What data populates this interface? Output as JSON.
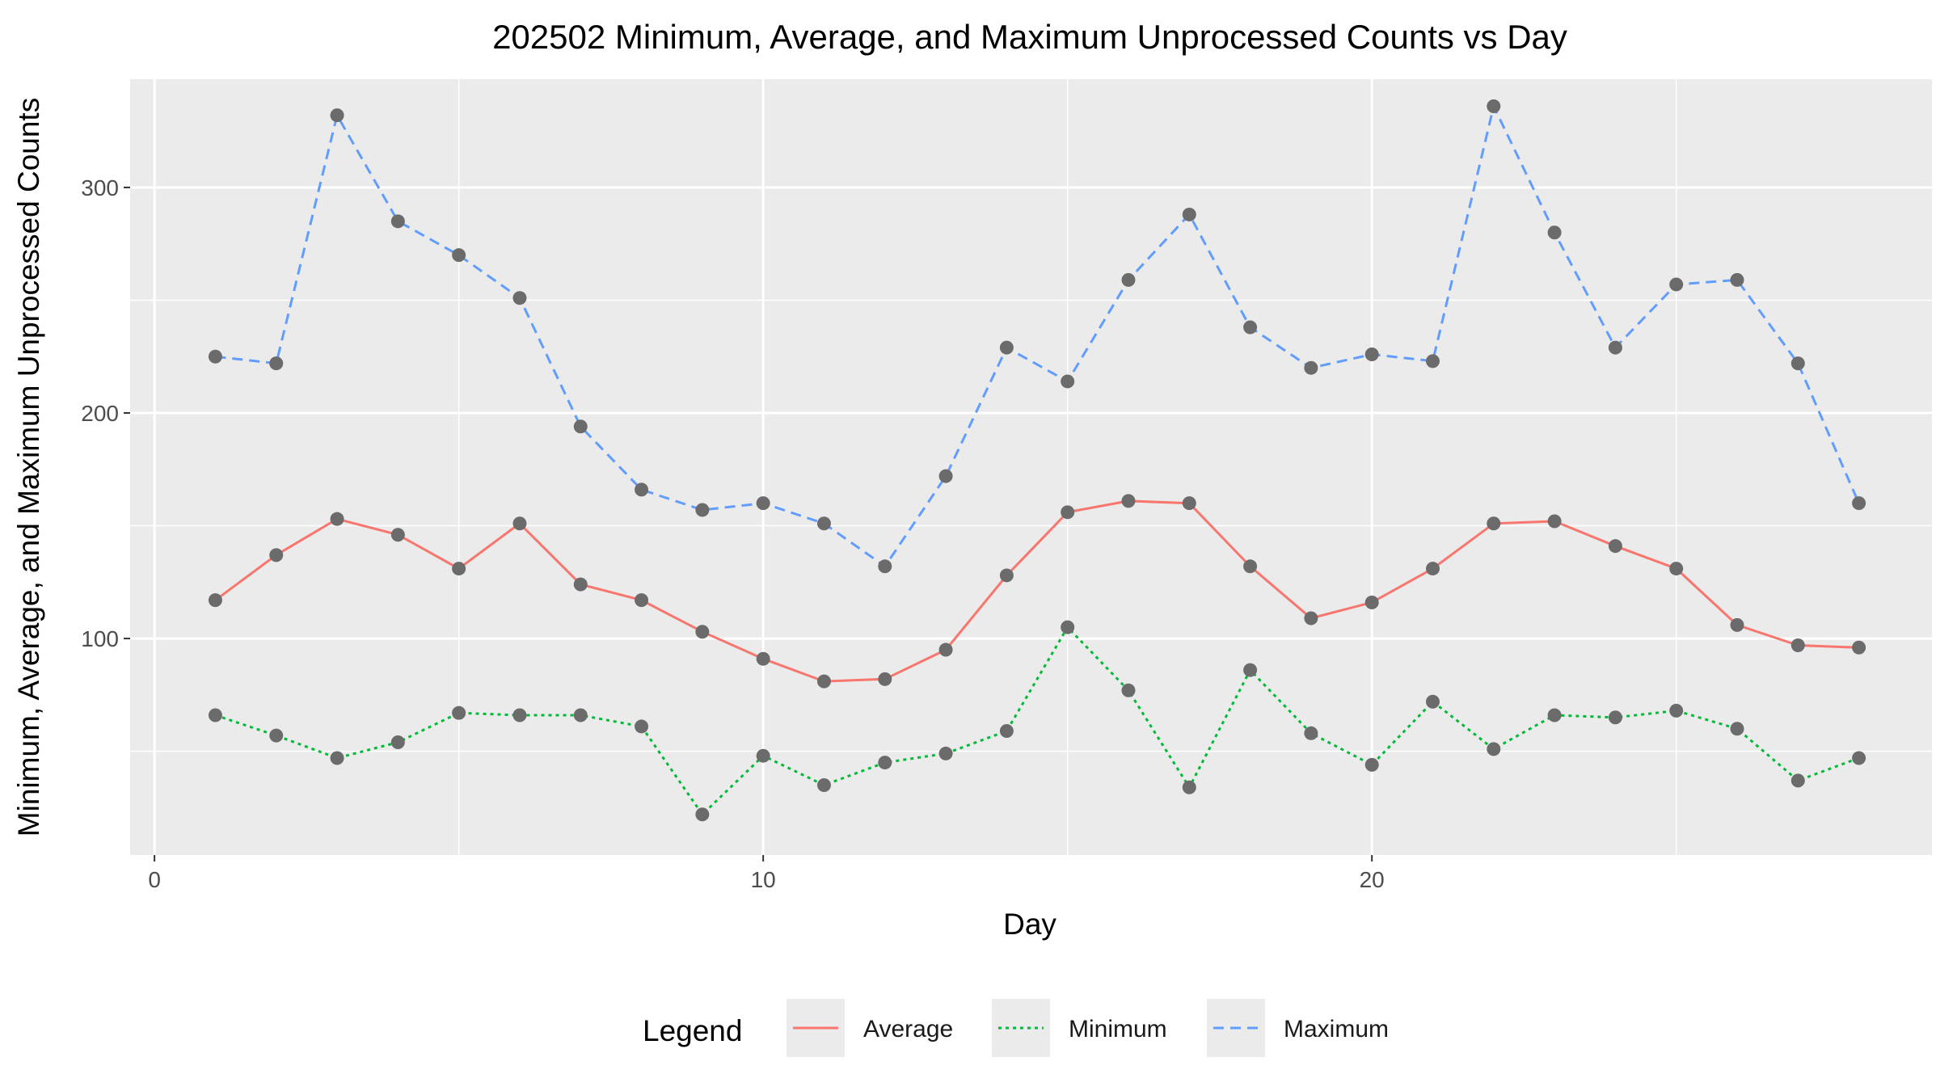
{
  "chart_data": {
    "type": "line",
    "title": "202502 Minimum, Average, and Maximum Unprocessed Counts vs Day",
    "xlabel": "Day",
    "ylabel": "Minimum, Average, and Maximum Unprocessed Counts",
    "xlim": [
      -0.4,
      29.2
    ],
    "ylim": [
      4,
      348
    ],
    "x_ticks": [
      0,
      10,
      20
    ],
    "y_ticks": [
      100,
      200,
      300
    ],
    "grid": true,
    "legend_title": "Legend",
    "legend_position": "bottom",
    "x": [
      1,
      2,
      3,
      4,
      5,
      6,
      7,
      8,
      9,
      10,
      11,
      12,
      13,
      14,
      15,
      16,
      17,
      18,
      19,
      20,
      21,
      22,
      23,
      24,
      25,
      26,
      27,
      28
    ],
    "series": [
      {
        "name": "Average",
        "color": "#F8766D",
        "dash": "solid",
        "values": [
          117,
          137,
          153,
          146,
          131,
          151,
          124,
          117,
          103,
          91,
          81,
          82,
          95,
          128,
          156,
          161,
          160,
          132,
          109,
          116,
          131,
          151,
          152,
          141,
          131,
          106,
          97,
          96
        ]
      },
      {
        "name": "Minimum",
        "color": "#00BA38",
        "dash": "dotted",
        "values": [
          66,
          57,
          47,
          54,
          67,
          66,
          66,
          61,
          22,
          48,
          35,
          45,
          49,
          59,
          105,
          77,
          34,
          86,
          58,
          44,
          72,
          51,
          66,
          65,
          68,
          60,
          37,
          47
        ]
      },
      {
        "name": "Maximum",
        "color": "#619CFF",
        "dash": "dashed",
        "values": [
          225,
          222,
          332,
          285,
          270,
          251,
          194,
          166,
          157,
          160,
          151,
          132,
          172,
          229,
          214,
          259,
          288,
          238,
          220,
          226,
          223,
          336,
          280,
          229,
          257,
          259,
          222,
          160
        ]
      }
    ],
    "point_color": "#6b6b6b"
  }
}
